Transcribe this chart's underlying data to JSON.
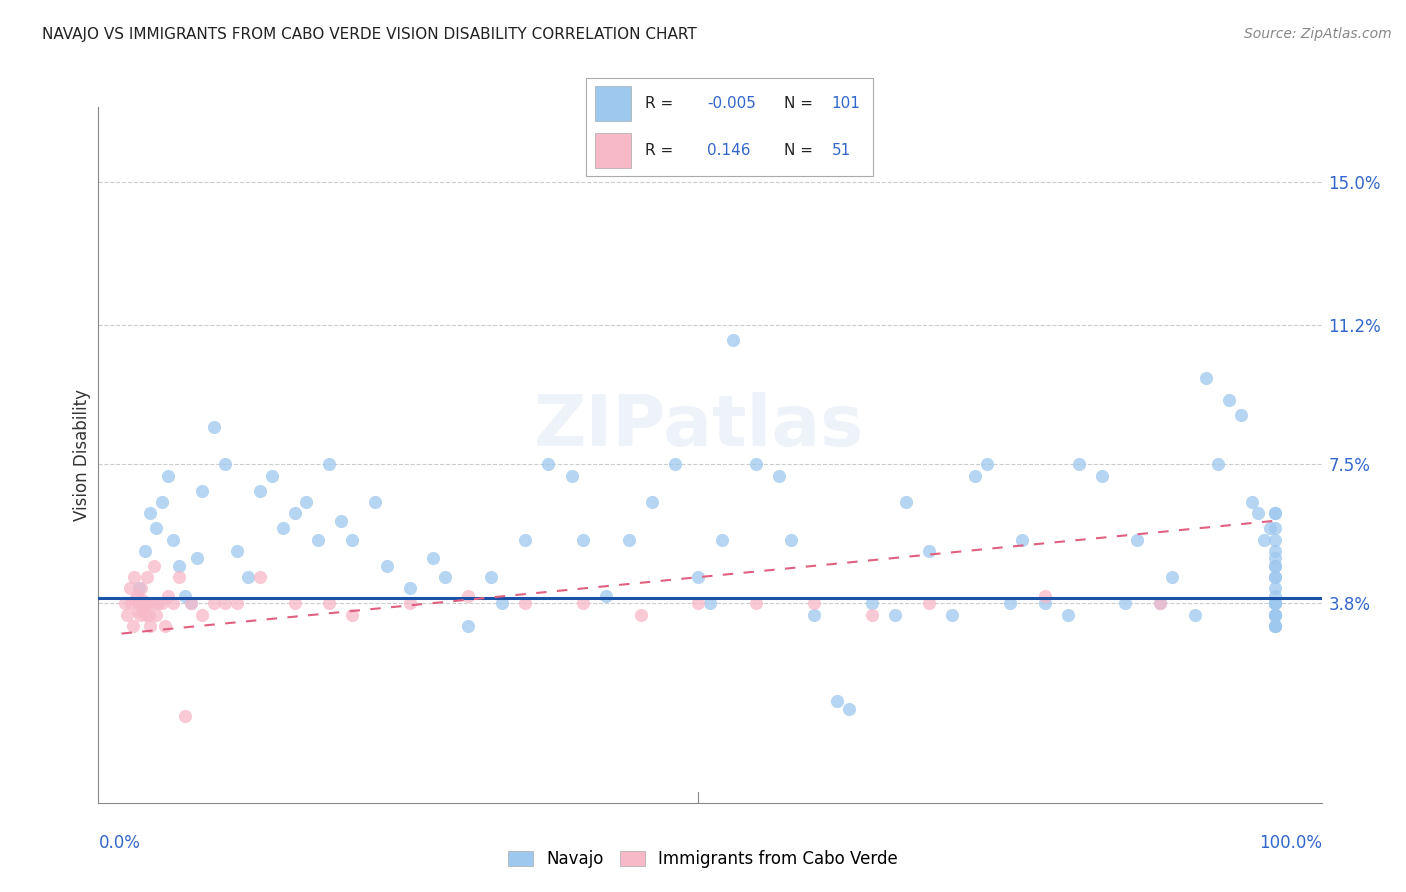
{
  "title": "NAVAJO VS IMMIGRANTS FROM CABO VERDE VISION DISABILITY CORRELATION CHART",
  "source": "Source: ZipAtlas.com",
  "ylabel": "Vision Disability",
  "ytick_labels": [
    "3.8%",
    "7.5%",
    "11.2%",
    "15.0%"
  ],
  "ytick_values": [
    3.8,
    7.5,
    11.2,
    15.0
  ],
  "ymin": -1.5,
  "ymax": 17.0,
  "xmin": -2.0,
  "xmax": 104.0,
  "legend_R1": "-0.005",
  "legend_N1": "101",
  "legend_R2": "0.146",
  "legend_N2": "51",
  "color_navajo": "#9EC8EE",
  "color_cabo": "#F7B8C8",
  "color_navajo_line": "#1A52A8",
  "color_cabo_line": "#E06080",
  "watermark": "ZIPatlas",
  "navajo_mean_y": 3.95,
  "cabo_trend_x0": 0.0,
  "cabo_trend_y0": 3.0,
  "cabo_trend_x1": 100.0,
  "cabo_trend_y1": 6.0,
  "marker_size": 90,
  "marker_alpha": 0.75,
  "navajo_x": [
    1.5,
    2.0,
    2.5,
    3.0,
    3.5,
    4.0,
    4.5,
    5.0,
    5.5,
    6.0,
    6.5,
    7.0,
    8.0,
    9.0,
    10.0,
    11.0,
    12.0,
    13.0,
    14.0,
    15.0,
    16.0,
    17.0,
    18.0,
    19.0,
    20.0,
    22.0,
    23.0,
    25.0,
    27.0,
    28.0,
    30.0,
    32.0,
    33.0,
    35.0,
    37.0,
    39.0,
    40.0,
    42.0,
    44.0,
    46.0,
    48.0,
    50.0,
    51.0,
    52.0,
    53.0,
    55.0,
    57.0,
    58.0,
    60.0,
    62.0,
    63.0,
    65.0,
    67.0,
    68.0,
    70.0,
    72.0,
    74.0,
    75.0,
    77.0,
    78.0,
    80.0,
    82.0,
    83.0,
    85.0,
    87.0,
    88.0,
    90.0,
    91.0,
    93.0,
    94.0,
    95.0,
    96.0,
    97.0,
    98.0,
    98.5,
    99.0,
    99.5,
    100.0,
    100.0,
    100.0,
    100.0,
    100.0,
    100.0,
    100.0,
    100.0,
    100.0,
    100.0,
    100.0,
    100.0,
    100.0,
    100.0,
    100.0,
    100.0,
    100.0,
    100.0,
    100.0,
    100.0,
    100.0,
    100.0,
    100.0,
    100.0
  ],
  "navajo_y": [
    4.2,
    5.2,
    6.2,
    5.8,
    6.5,
    7.2,
    5.5,
    4.8,
    4.0,
    3.8,
    5.0,
    6.8,
    8.5,
    7.5,
    5.2,
    4.5,
    6.8,
    7.2,
    5.8,
    6.2,
    6.5,
    5.5,
    7.5,
    6.0,
    5.5,
    6.5,
    4.8,
    4.2,
    5.0,
    4.5,
    3.2,
    4.5,
    3.8,
    5.5,
    7.5,
    7.2,
    5.5,
    4.0,
    5.5,
    6.5,
    7.5,
    4.5,
    3.8,
    5.5,
    10.8,
    7.5,
    7.2,
    5.5,
    3.5,
    1.2,
    1.0,
    3.8,
    3.5,
    6.5,
    5.2,
    3.5,
    7.2,
    7.5,
    3.8,
    5.5,
    3.8,
    3.5,
    7.5,
    7.2,
    3.8,
    5.5,
    3.8,
    4.5,
    3.5,
    9.8,
    7.5,
    9.2,
    8.8,
    6.5,
    6.2,
    5.5,
    5.8,
    5.2,
    4.5,
    3.8,
    6.2,
    4.8,
    3.5,
    4.8,
    3.5,
    3.2,
    5.8,
    6.2,
    3.8,
    3.5,
    3.2,
    4.2,
    5.0,
    3.8,
    3.2,
    4.5,
    3.8,
    5.5,
    3.5,
    4.0,
    3.8
  ],
  "cabo_x": [
    0.3,
    0.5,
    0.7,
    0.8,
    1.0,
    1.1,
    1.2,
    1.3,
    1.4,
    1.5,
    1.6,
    1.7,
    1.8,
    1.9,
    2.0,
    2.1,
    2.2,
    2.3,
    2.4,
    2.5,
    2.7,
    2.8,
    3.0,
    3.2,
    3.5,
    3.8,
    4.0,
    4.5,
    5.0,
    6.0,
    7.0,
    8.0,
    9.0,
    10.0,
    12.0,
    15.0,
    18.0,
    20.0,
    25.0,
    30.0,
    35.0,
    40.0,
    45.0,
    50.0,
    55.0,
    60.0,
    65.0,
    70.0,
    80.0,
    90.0,
    5.5
  ],
  "cabo_y": [
    3.8,
    3.5,
    4.2,
    3.8,
    3.2,
    4.5,
    3.9,
    4.0,
    3.6,
    3.8,
    3.5,
    4.2,
    3.9,
    3.7,
    3.8,
    3.5,
    4.5,
    3.8,
    3.5,
    3.2,
    3.8,
    4.8,
    3.5,
    3.8,
    3.8,
    3.2,
    4.0,
    3.8,
    4.5,
    3.8,
    3.5,
    3.8,
    3.8,
    3.8,
    4.5,
    3.8,
    3.8,
    3.5,
    3.8,
    4.0,
    3.8,
    3.8,
    3.5,
    3.8,
    3.8,
    3.8,
    3.5,
    3.8,
    4.0,
    3.8,
    0.8
  ]
}
